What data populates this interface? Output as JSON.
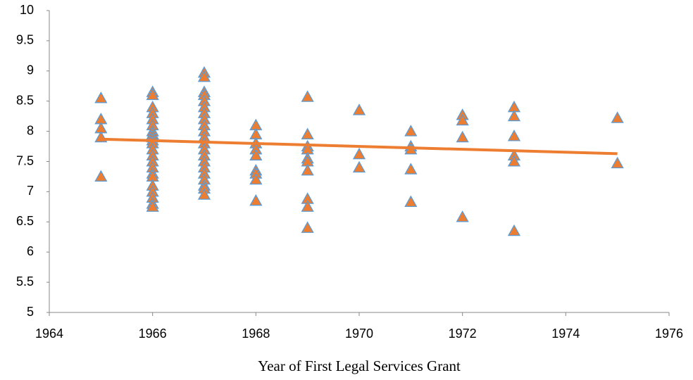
{
  "chart_data": {
    "type": "scatter",
    "xlabel": "Year of First Legal Services Grant",
    "x": [
      1965,
      1965,
      1965,
      1965,
      1965,
      1966,
      1966,
      1966,
      1966,
      1966,
      1966,
      1966,
      1966,
      1966,
      1966,
      1966,
      1966,
      1966,
      1966,
      1966,
      1966,
      1966,
      1966,
      1966,
      1966,
      1966,
      1966,
      1967,
      1967,
      1967,
      1967,
      1967,
      1967,
      1967,
      1967,
      1967,
      1967,
      1967,
      1967,
      1967,
      1967,
      1967,
      1967,
      1967,
      1967,
      1967,
      1967,
      1967,
      1968,
      1968,
      1968,
      1968,
      1968,
      1968,
      1968,
      1968,
      1968,
      1969,
      1969,
      1969,
      1969,
      1969,
      1969,
      1969,
      1969,
      1969,
      1969,
      1970,
      1970,
      1970,
      1971,
      1971,
      1971,
      1971,
      1971,
      1972,
      1972,
      1972,
      1972,
      1973,
      1973,
      1973,
      1973,
      1973,
      1973,
      1975,
      1975
    ],
    "values": [
      8.55,
      8.2,
      8.05,
      7.9,
      7.25,
      8.65,
      8.6,
      8.4,
      8.3,
      8.2,
      8.1,
      8.0,
      7.95,
      7.9,
      7.85,
      7.8,
      7.7,
      7.6,
      7.5,
      7.4,
      7.3,
      7.25,
      7.1,
      7.0,
      6.9,
      6.8,
      6.75,
      8.97,
      8.9,
      8.65,
      8.6,
      8.5,
      8.4,
      8.3,
      8.2,
      8.1,
      8.0,
      7.9,
      7.8,
      7.7,
      7.6,
      7.5,
      7.4,
      7.3,
      7.2,
      7.1,
      7.05,
      6.95,
      8.1,
      7.95,
      7.8,
      7.7,
      7.6,
      7.35,
      7.3,
      7.2,
      6.85,
      8.57,
      7.95,
      7.75,
      7.7,
      7.55,
      7.5,
      7.35,
      6.88,
      6.75,
      6.4,
      8.35,
      7.62,
      7.4,
      8.0,
      7.75,
      7.7,
      7.37,
      6.83,
      8.27,
      8.18,
      7.9,
      6.58,
      8.4,
      8.25,
      7.92,
      7.6,
      7.5,
      6.35,
      8.22,
      7.47
    ],
    "color": "#ed7d31",
    "edgecolor": "#5b9bd5",
    "marker": "triangle",
    "trendline": {
      "x": [
        1965,
        1975
      ],
      "values": [
        7.87,
        7.63
      ],
      "color": "#ed7d31"
    },
    "xlim": [
      1964,
      1976
    ],
    "xticks": [
      1964,
      1966,
      1968,
      1970,
      1972,
      1974,
      1976
    ],
    "ylim": [
      5,
      10
    ],
    "yticks": [
      5,
      5.5,
      6,
      6.5,
      7,
      7.5,
      8,
      8.5,
      9,
      9.5,
      10
    ],
    "grid": false
  }
}
